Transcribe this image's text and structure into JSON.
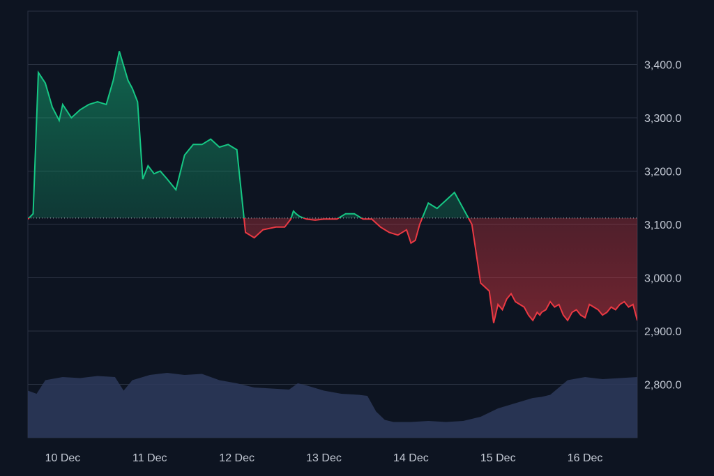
{
  "colors": {
    "background": "#0d1421",
    "grid": "#2a3242",
    "up": "#16c784",
    "down": "#ea3943",
    "volume": "#2e3a5c",
    "baseline": "#b8c0cc"
  },
  "chart_data": {
    "type": "area",
    "title": "",
    "xlabel": "",
    "ylabel": "",
    "ylim": [
      2700,
      3500
    ],
    "y_axis_position": "right",
    "y_ticks": [
      "3,400.0",
      "3,300.0",
      "3,200.0",
      "3,100.0",
      "3,000.0",
      "2,900.0",
      "2,800.0"
    ],
    "y_tick_values": [
      3400,
      3300,
      3200,
      3100,
      3000,
      2900,
      2800
    ],
    "x_ticks": [
      "10 Dec",
      "11 Dec",
      "12 Dec",
      "13 Dec",
      "14 Dec",
      "15 Dec",
      "16 Dec"
    ],
    "x_tick_days": [
      10,
      11,
      12,
      13,
      14,
      15,
      16
    ],
    "x_range_days": [
      9.6,
      16.6
    ],
    "baseline": 3112,
    "grid": true,
    "price": {
      "x": [
        9.6,
        9.66,
        9.72,
        9.8,
        9.88,
        9.96,
        10.0,
        10.1,
        10.2,
        10.3,
        10.4,
        10.5,
        10.58,
        10.65,
        10.75,
        10.8,
        10.86,
        10.92,
        10.98,
        11.05,
        11.12,
        11.2,
        11.3,
        11.4,
        11.5,
        11.6,
        11.7,
        11.8,
        11.9,
        11.95,
        12.0,
        12.1,
        12.2,
        12.3,
        12.45,
        12.55,
        12.62,
        12.65,
        12.68,
        12.72,
        12.8,
        12.9,
        13.0,
        13.15,
        13.2,
        13.25,
        13.35,
        13.45,
        13.55,
        13.65,
        13.75,
        13.85,
        13.95,
        14.0,
        14.05,
        14.1,
        14.2,
        14.3,
        14.4,
        14.5,
        14.6,
        14.7,
        14.8,
        14.9,
        14.95,
        15.0,
        15.05,
        15.1,
        15.15,
        15.2,
        15.3,
        15.35,
        15.4,
        15.45,
        15.48,
        15.5,
        15.55,
        15.6,
        15.65,
        15.7,
        15.75,
        15.8,
        15.85,
        15.9,
        15.95,
        16.0,
        16.05,
        16.1,
        16.15,
        16.2,
        16.25,
        16.3,
        16.35,
        16.4,
        16.45,
        16.5,
        16.55,
        16.6
      ],
      "y": [
        3110,
        3120,
        3385,
        3365,
        3320,
        3295,
        3325,
        3300,
        3315,
        3325,
        3330,
        3325,
        3370,
        3425,
        3370,
        3355,
        3330,
        3185,
        3210,
        3195,
        3200,
        3185,
        3165,
        3230,
        3250,
        3250,
        3260,
        3245,
        3250,
        3245,
        3240,
        3085,
        3075,
        3090,
        3095,
        3095,
        3110,
        3125,
        3120,
        3115,
        3110,
        3108,
        3110,
        3110,
        3115,
        3120,
        3120,
        3110,
        3110,
        3095,
        3085,
        3080,
        3090,
        3065,
        3070,
        3100,
        3140,
        3130,
        3145,
        3160,
        3130,
        3100,
        2990,
        2975,
        2915,
        2950,
        2940,
        2960,
        2970,
        2955,
        2945,
        2930,
        2920,
        2935,
        2930,
        2935,
        2940,
        2955,
        2945,
        2950,
        2930,
        2920,
        2935,
        2940,
        2930,
        2925,
        2950,
        2945,
        2940,
        2930,
        2935,
        2945,
        2940,
        2950,
        2955,
        2945,
        2950,
        2920
      ]
    },
    "volume": {
      "x": [
        9.6,
        9.7,
        9.8,
        10.0,
        10.2,
        10.4,
        10.6,
        10.7,
        10.8,
        11.0,
        11.2,
        11.4,
        11.6,
        11.8,
        12.0,
        12.2,
        12.4,
        12.6,
        12.7,
        12.8,
        13.0,
        13.2,
        13.4,
        13.5,
        13.6,
        13.7,
        13.8,
        14.0,
        14.2,
        14.4,
        14.6,
        14.8,
        15.0,
        15.2,
        15.4,
        15.5,
        15.6,
        15.8,
        16.0,
        16.2,
        16.4,
        16.6
      ],
      "relative": [
        0.45,
        0.42,
        0.55,
        0.58,
        0.57,
        0.59,
        0.58,
        0.45,
        0.55,
        0.6,
        0.62,
        0.6,
        0.61,
        0.55,
        0.52,
        0.48,
        0.47,
        0.46,
        0.52,
        0.5,
        0.45,
        0.42,
        0.41,
        0.4,
        0.25,
        0.17,
        0.15,
        0.15,
        0.16,
        0.15,
        0.16,
        0.2,
        0.28,
        0.33,
        0.38,
        0.39,
        0.41,
        0.55,
        0.58,
        0.56,
        0.57,
        0.58
      ]
    }
  }
}
